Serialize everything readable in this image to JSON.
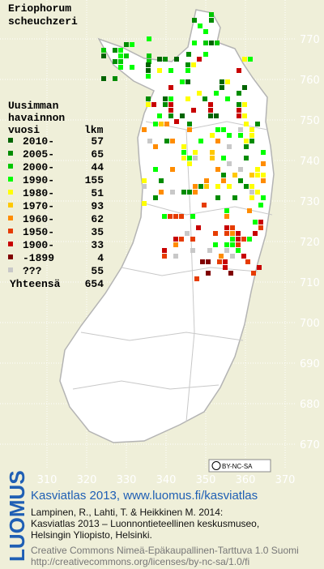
{
  "title": [
    "Eriophorum",
    "scheuchzeri"
  ],
  "legend": {
    "heading": [
      "Uusimman",
      "havainnon",
      "vuosi"
    ],
    "count_heading": "lkm",
    "items": [
      {
        "label": "2010-",
        "count": 57,
        "color": "#006400"
      },
      {
        "label": "2005-",
        "count": 65,
        "color": "#008c00"
      },
      {
        "label": "2000-",
        "count": 44,
        "color": "#00c800"
      },
      {
        "label": "1990-",
        "count": 155,
        "color": "#00ff00"
      },
      {
        "label": "1980-",
        "count": 51,
        "color": "#ffff00"
      },
      {
        "label": "1970-",
        "count": 93,
        "color": "#ffc800"
      },
      {
        "label": "1960-",
        "count": 62,
        "color": "#ff8c00"
      },
      {
        "label": "1950-",
        "count": 35,
        "color": "#e63c00"
      },
      {
        "label": "1900-",
        "count": 33,
        "color": "#c80000"
      },
      {
        "label": "-1899",
        "count": 4,
        "color": "#800000"
      },
      {
        "label": "???",
        "count": 55,
        "color": "#c8c8c8"
      }
    ],
    "total_label": "Yhteensä",
    "total": 654
  },
  "grid": {
    "y_labels": [
      770,
      760,
      750,
      740,
      730,
      720,
      710,
      700,
      690,
      680,
      670
    ],
    "x_labels": [
      310,
      320,
      330,
      340,
      350,
      360,
      370
    ]
  },
  "badge": "BY-NC-SA",
  "footer": {
    "brand": "LUOMUS",
    "link": "Kasviatlas 2013, www.luomus.fi/kasviatlas",
    "citation": [
      "Lampinen, R., Lahti, T. & Heikkinen M. 2014:",
      "Kasviatlas 2013 – Luonnontieteellinen keskusmuseo,",
      "Helsingin Yliopisto, Helsinki."
    ],
    "license": [
      "Creative Commons Nimeä-Epäkaupallinen-Tarttuva 1.0 Suomi",
      "http://creativecommons.org/licenses/by-nc-sa/1.0/fi"
    ]
  }
}
